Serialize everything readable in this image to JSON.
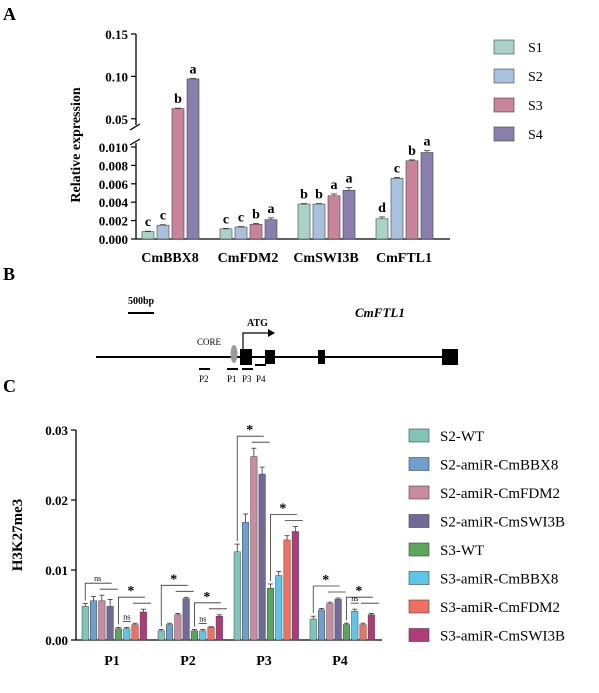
{
  "panels": {
    "a": "A",
    "b": "B",
    "c": "C"
  },
  "colors": {
    "S1": "#a9d3c7",
    "S2": "#a8c1dd",
    "S3": "#c9849b",
    "S4": "#8a7fac",
    "S2-WT": "#7fc6b8",
    "S2-amiR-CmBBX8": "#6f9fcc",
    "S2-amiR-CmFDM2": "#c98ba0",
    "S2-amiR-CmSWI3B": "#6f6a9a",
    "S3-WT": "#5aa65a",
    "S3-amiR-CmBBX8": "#5bc8ea",
    "S3-amiR-CmFDM2": "#f07060",
    "S3-amiR-CmSWI3B": "#b03a7a"
  },
  "chart_data": [
    {
      "type": "bar",
      "panel": "A",
      "ylabel": "Relative expression",
      "y_broken_axis": true,
      "lower_ylim": [
        0,
        0.01
      ],
      "upper_ylim": [
        0.045,
        0.15
      ],
      "lower_ticks": [
        "0.000",
        "0.002",
        "0.004",
        "0.006",
        "0.008",
        "0.010"
      ],
      "upper_ticks": [
        "0.05",
        "0.10",
        "0.15"
      ],
      "categories": [
        "CmBBX8",
        "CmFDM2",
        "CmSWI3B",
        "CmFTL1"
      ],
      "series": [
        {
          "name": "S1",
          "values": [
            0.0008,
            0.0011,
            0.0038,
            0.0022
          ],
          "errors": [
            5e-05,
            5e-05,
            5e-05,
            0.0002
          ],
          "letters": [
            "c",
            "c",
            "b",
            "d"
          ]
        },
        {
          "name": "S2",
          "values": [
            0.0015,
            0.0013,
            0.0038,
            0.0066
          ],
          "errors": [
            5e-05,
            5e-05,
            5e-05,
            0.0001
          ],
          "letters": [
            "c",
            "c",
            "b",
            "c"
          ]
        },
        {
          "name": "S3",
          "values": [
            0.062,
            0.0016,
            0.0047,
            0.0085
          ],
          "errors": [
            0.0005,
            0.0001,
            0.0002,
            0.0001
          ],
          "letters": [
            "b",
            "b",
            "a",
            "b"
          ]
        },
        {
          "name": "S4",
          "values": [
            0.097,
            0.0021,
            0.0053,
            0.0094
          ],
          "errors": [
            0.0005,
            0.0002,
            0.0003,
            0.0002
          ],
          "letters": [
            "a",
            "a",
            "a",
            "a"
          ]
        }
      ],
      "legend": [
        "S1",
        "S2",
        "S3",
        "S4"
      ],
      "legend_position": "right"
    },
    {
      "type": "bar",
      "panel": "C",
      "ylabel": "H3K27me3",
      "ylim": [
        0,
        0.03
      ],
      "yticks": [
        "0.00",
        "0.01",
        "0.02",
        "0.03"
      ],
      "categories": [
        "P1",
        "P2",
        "P3",
        "P4"
      ],
      "series": [
        {
          "name": "S2-WT",
          "values": [
            0.0048,
            0.0013,
            0.0126,
            0.003
          ],
          "errors": [
            0.0004,
            0.0002,
            0.0011,
            0.0004
          ]
        },
        {
          "name": "S2-amiR-CmBBX8",
          "values": [
            0.0056,
            0.0022,
            0.0168,
            0.0043
          ],
          "errors": [
            0.0006,
            0.0002,
            0.0012,
            0.0002
          ]
        },
        {
          "name": "S2-amiR-CmFDM2",
          "values": [
            0.0056,
            0.0036,
            0.0262,
            0.0052
          ],
          "errors": [
            0.0008,
            0.0002,
            0.0012,
            0.0002
          ]
        },
        {
          "name": "S2-amiR-CmSWI3B",
          "values": [
            0.0048,
            0.0059,
            0.0237,
            0.0058
          ],
          "errors": [
            0.001,
            0.0002,
            0.001,
            0.0002
          ]
        },
        {
          "name": "S3-WT",
          "values": [
            0.0016,
            0.0013,
            0.0074,
            0.0022
          ],
          "errors": [
            0.0002,
            0.0002,
            0.0006,
            0.0002
          ]
        },
        {
          "name": "S3-amiR-CmBBX8",
          "values": [
            0.0016,
            0.0013,
            0.0092,
            0.0041
          ],
          "errors": [
            0.0002,
            0.0002,
            0.0006,
            0.0003
          ]
        },
        {
          "name": "S3-amiR-CmFDM2",
          "values": [
            0.0022,
            0.0018,
            0.0143,
            0.0022
          ],
          "errors": [
            0.0002,
            0.0001,
            0.0006,
            0.0002
          ]
        },
        {
          "name": "S3-amiR-CmSWI3B",
          "values": [
            0.004,
            0.0034,
            0.0155,
            0.0036
          ],
          "errors": [
            0.0004,
            0.0002,
            0.0007,
            0.0002
          ]
        }
      ],
      "significance": [
        {
          "category": "P1",
          "top": "ns",
          "bottom": "*"
        },
        {
          "category": "P2",
          "top": "*",
          "bottom": "*"
        },
        {
          "category": "P3",
          "top": "*",
          "bottom": "*"
        },
        {
          "category": "P4",
          "top": "*",
          "bottom": "*"
        }
      ],
      "inner_ns": [
        "P1",
        "P2",
        "P4"
      ],
      "legend_position": "right"
    }
  ],
  "gene_diagram": {
    "scale_label": "500bp",
    "gene_name": "CmFTL1",
    "core_label": "CORE",
    "atg_label": "ATG",
    "primers": [
      "P2",
      "P1",
      "P3",
      "P4"
    ]
  },
  "sig_labels": {
    "ns": "ns",
    "star": "*"
  }
}
